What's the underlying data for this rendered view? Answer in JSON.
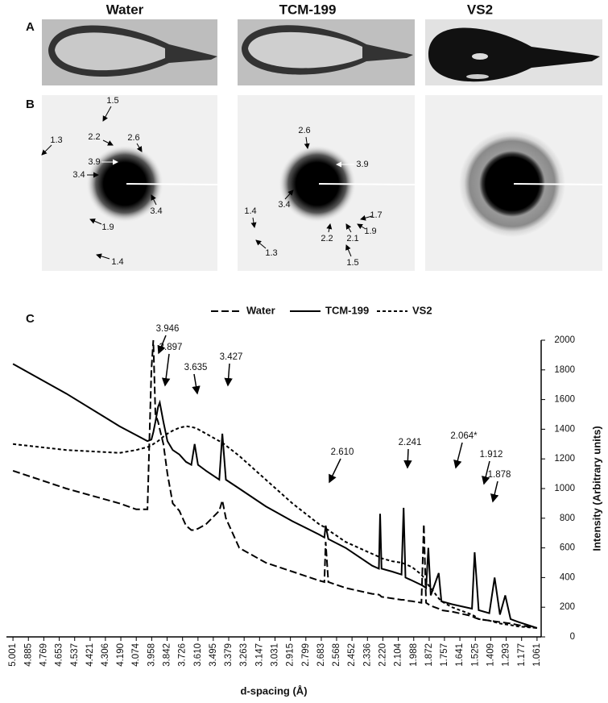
{
  "panel_labels": [
    "A",
    "B",
    "C"
  ],
  "columns": [
    "Water",
    "TCM-199",
    "VS2"
  ],
  "diffraction_labels": {
    "Water": [
      "1.5",
      "1.3",
      "2.2",
      "2.6",
      "3.9",
      "3.4",
      "3.4",
      "1.9",
      "1.4"
    ],
    "TCM-199": [
      "2.6",
      "3.9",
      "3.4",
      "1.4",
      "1.7",
      "1.9",
      "2.2",
      "2.1",
      "1.3",
      "1.5"
    ]
  },
  "chart_data": {
    "type": "line",
    "xlabel": "d-spacing (Å)",
    "ylabel": "Intensity (Arbitrary units)",
    "xlim": [
      5.05,
      1.03
    ],
    "ylim": [
      0,
      2000
    ],
    "xticks": [
      5.001,
      4.885,
      4.769,
      4.653,
      4.537,
      4.421,
      4.306,
      {
        "value": 4.19,
        "label": "4.190"
      },
      4.074,
      3.958,
      3.842,
      3.726,
      {
        "value": 3.61,
        "label": "3.610"
      },
      3.495,
      3.379,
      3.263,
      3.147,
      3.031,
      2.915,
      2.799,
      2.683,
      2.568,
      2.452,
      2.336,
      {
        "value": 2.22,
        "label": "2.220"
      },
      2.104,
      1.988,
      1.872,
      1.757,
      1.641,
      1.525,
      1.409,
      1.293,
      1.177,
      1.061
    ],
    "yticks": [
      0,
      200,
      400,
      600,
      800,
      1000,
      1200,
      1400,
      1600,
      1800,
      2000
    ],
    "y_axis_side": "right",
    "legend": "top",
    "x": [
      5.001,
      4.6,
      4.2,
      4.074,
      3.99,
      3.96,
      3.946,
      3.93,
      3.91,
      3.897,
      3.87,
      3.84,
      3.8,
      3.75,
      3.7,
      3.66,
      3.635,
      3.61,
      3.55,
      3.45,
      3.427,
      3.4,
      3.3,
      3.1,
      2.9,
      2.7,
      2.66,
      2.65,
      2.63,
      2.5,
      2.3,
      2.25,
      2.241,
      2.23,
      2.15,
      2.08,
      2.064,
      2.05,
      2.0,
      1.93,
      1.912,
      1.895,
      1.878,
      1.86,
      1.8,
      1.78,
      1.7,
      1.55,
      1.53,
      1.5,
      1.42,
      1.38,
      1.34,
      1.3,
      1.26,
      1.2,
      1.061
    ],
    "series": [
      {
        "name": "Water",
        "color": "#000000",
        "dash": "long",
        "values": [
          1120,
          1000,
          900,
          860,
          860,
          1800,
          2000,
          1500,
          1450,
          1400,
          1300,
          1100,
          900,
          850,
          750,
          720,
          720,
          730,
          760,
          850,
          920,
          800,
          600,
          500,
          440,
          380,
          370,
          640,
          370,
          330,
          290,
          285,
          280,
          270,
          260,
          250,
          250,
          245,
          240,
          230,
          760,
          230,
          220,
          210,
          190,
          180,
          170,
          140,
          130,
          120,
          110,
          105,
          100,
          95,
          90,
          80,
          60
        ]
      },
      {
        "name": "TCM-199",
        "color": "#000000",
        "dash": "solid",
        "values": [
          1840,
          1640,
          1420,
          1360,
          1320,
          1330,
          1380,
          1450,
          1550,
          1580,
          1450,
          1320,
          1260,
          1230,
          1180,
          1160,
          1300,
          1160,
          1120,
          1060,
          1370,
          1060,
          1000,
          880,
          780,
          690,
          670,
          750,
          660,
          600,
          480,
          460,
          830,
          460,
          440,
          420,
          870,
          400,
          380,
          350,
          340,
          330,
          600,
          280,
          430,
          240,
          220,
          190,
          570,
          180,
          160,
          400,
          150,
          280,
          120,
          100,
          60
        ]
      },
      {
        "name": "VS2",
        "color": "#000000",
        "dash": "short",
        "values": [
          1300,
          1260,
          1240,
          1260,
          1280,
          1290,
          1300,
          1310,
          1320,
          1330,
          1350,
          1370,
          1390,
          1410,
          1420,
          1415,
          1410,
          1400,
          1370,
          1320,
          1310,
          1290,
          1220,
          1060,
          900,
          760,
          740,
          730,
          720,
          640,
          560,
          540,
          535,
          530,
          510,
          500,
          495,
          490,
          470,
          420,
          400,
          380,
          350,
          330,
          260,
          240,
          200,
          150,
          140,
          120,
          110,
          100,
          90,
          85,
          80,
          70,
          60
        ]
      }
    ],
    "annotations": [
      "3.946",
      "3.897",
      "3.635",
      "3.427",
      "2.610",
      "2.241",
      "2.064*",
      "1.912",
      "1.878"
    ]
  }
}
